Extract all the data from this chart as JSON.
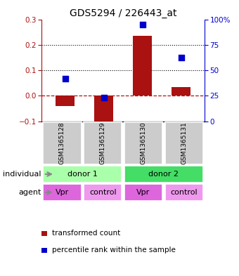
{
  "title": "GDS5294 / 226443_at",
  "samples": [
    "GSM1365128",
    "GSM1365129",
    "GSM1365130",
    "GSM1365131"
  ],
  "bar_values": [
    -0.04,
    -0.115,
    0.235,
    0.033
  ],
  "dot_values": [
    0.068,
    -0.008,
    0.278,
    0.15
  ],
  "bar_color": "#aa1111",
  "dot_color": "#0000cc",
  "ylim_left": [
    -0.1,
    0.3
  ],
  "ylim_right": [
    0,
    100
  ],
  "yticks_left": [
    -0.1,
    0.0,
    0.1,
    0.2,
    0.3
  ],
  "yticks_right": [
    0,
    25,
    50,
    75,
    100
  ],
  "dotted_lines": [
    0.1,
    0.2
  ],
  "individuals": [
    [
      "donor 1",
      0,
      2
    ],
    [
      "donor 2",
      2,
      4
    ]
  ],
  "agents": [
    "Vpr",
    "control",
    "Vpr",
    "control"
  ],
  "individual_colors": [
    "#aaffaa",
    "#44dd66"
  ],
  "agent_color_pattern": [
    "#dd66dd",
    "#ee99ee"
  ],
  "label_individual": "individual",
  "label_agent": "agent",
  "legend_bar": "transformed count",
  "legend_dot": "percentile rank within the sample",
  "bar_width": 0.5,
  "sample_box_color": "#cccccc",
  "title_fontsize": 10,
  "tick_fontsize": 7.5,
  "sample_fontsize": 6.5,
  "row_fontsize": 8
}
